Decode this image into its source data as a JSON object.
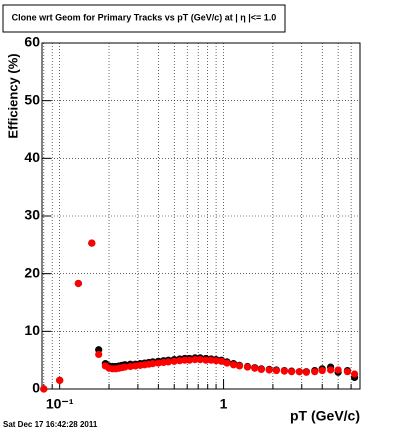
{
  "chart_data": {
    "type": "scatter",
    "title": "Clone wrt Geom for Primary Tracks vs pT (GeV/c) at | η |<= 1.0",
    "x_label": "pT (GeV/c)",
    "y_label": "Efficiency (%)",
    "footer": "Sat Dec 17 16:42:28 2011",
    "log_x": true,
    "grid": true,
    "xlim": [
      0.078,
      6.8
    ],
    "ylim": [
      0,
      60
    ],
    "xticks": [
      {
        "value": 0.1,
        "label": "10⁻¹"
      },
      1
    ],
    "xminorticks": [
      0.08,
      0.09,
      0.2,
      0.3,
      0.4,
      0.5,
      0.6,
      0.7,
      0.8,
      0.9,
      2,
      3,
      4,
      5,
      6
    ],
    "yticks": [
      0,
      10,
      20,
      30,
      40,
      50,
      60
    ],
    "x": [
      0.08,
      0.1,
      0.13,
      0.157,
      0.173,
      0.19,
      0.2,
      0.21,
      0.22,
      0.23,
      0.24,
      0.25,
      0.27,
      0.29,
      0.31,
      0.33,
      0.35,
      0.37,
      0.4,
      0.43,
      0.46,
      0.5,
      0.54,
      0.58,
      0.62,
      0.67,
      0.72,
      0.78,
      0.84,
      0.9,
      0.97,
      1.05,
      1.15,
      1.25,
      1.4,
      1.55,
      1.7,
      1.9,
      2.1,
      2.35,
      2.6,
      2.9,
      3.2,
      3.6,
      4.0,
      4.5,
      5.0,
      5.7,
      6.3
    ],
    "series": [
      {
        "color": "#000000",
        "values": [
          0,
          1.5,
          18.3,
          25.3,
          6.8,
          4.4,
          4.0,
          3.9,
          3.9,
          4.0,
          4.1,
          4.2,
          4.3,
          4.3,
          4.4,
          4.5,
          4.6,
          4.7,
          4.8,
          4.9,
          5.0,
          5.1,
          5.2,
          5.3,
          5.3,
          5.4,
          5.4,
          5.3,
          5.2,
          5.1,
          5.0,
          4.7,
          4.4,
          4.1,
          3.9,
          3.7,
          3.5,
          3.4,
          3.3,
          3.2,
          3.1,
          3.0,
          3.0,
          3.2,
          3.5,
          3.8,
          2.9,
          3.2,
          2.0
        ]
      },
      {
        "color": "#ff0000",
        "values": [
          0,
          1.5,
          18.3,
          25.3,
          6.0,
          4.0,
          3.6,
          3.5,
          3.5,
          3.6,
          3.7,
          3.8,
          3.9,
          4.0,
          4.1,
          4.2,
          4.3,
          4.4,
          4.5,
          4.6,
          4.7,
          4.8,
          4.9,
          5.0,
          5.0,
          5.1,
          5.1,
          5.0,
          5.0,
          4.9,
          4.8,
          4.5,
          4.2,
          4.0,
          3.8,
          3.6,
          3.4,
          3.3,
          3.2,
          3.1,
          3.0,
          3.0,
          2.9,
          3.0,
          3.2,
          3.3,
          3.3,
          3.0,
          2.6
        ]
      }
    ]
  }
}
